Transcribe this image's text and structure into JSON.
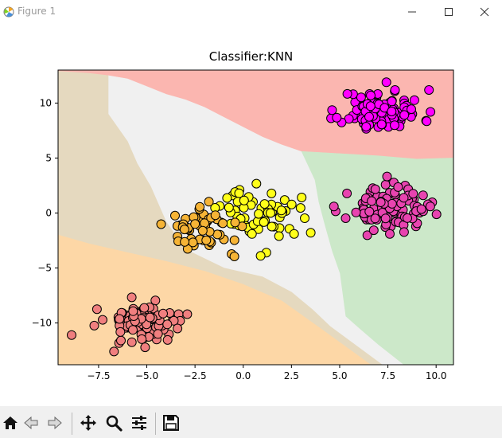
{
  "window": {
    "title": "Figure 1",
    "controls": [
      "minimize",
      "maximize",
      "close"
    ]
  },
  "toolbar": {
    "buttons": [
      {
        "name": "home-button",
        "icon": "home-icon"
      },
      {
        "name": "back-button",
        "icon": "arrow-left-icon"
      },
      {
        "name": "forward-button",
        "icon": "arrow-right-icon"
      },
      {
        "name": "pan-button",
        "icon": "move-icon"
      },
      {
        "name": "zoom-button",
        "icon": "magnifier-icon"
      },
      {
        "name": "configure-subplots-button",
        "icon": "sliders-icon"
      },
      {
        "name": "save-button",
        "icon": "floppy-disk-icon"
      }
    ]
  },
  "chart_data": {
    "type": "scatter",
    "title": "Classifier:KNN",
    "xlabel": "",
    "ylabel": "",
    "xlim": [
      -9.6,
      10.9
    ],
    "ylim": [
      -13.8,
      13.0
    ],
    "xticks": [
      -7.5,
      -5.0,
      -2.5,
      0.0,
      2.5,
      5.0,
      7.5,
      10.0
    ],
    "xtick_labels": [
      "−7.5",
      "−5.0",
      "−2.5",
      "0.0",
      "2.5",
      "5.0",
      "7.5",
      "10.0"
    ],
    "yticks": [
      -10,
      -5,
      0,
      5,
      10
    ],
    "ytick_labels": [
      "−10",
      "−5",
      "0",
      "5",
      "10"
    ],
    "grid": false,
    "decision_regions": [
      {
        "class": "magenta",
        "color": "#fbb6b0",
        "polygon": [
          [
            -9.6,
            13.0
          ],
          [
            10.9,
            13.0
          ],
          [
            10.9,
            5.0
          ],
          [
            9.0,
            4.9
          ],
          [
            7.0,
            5.2
          ],
          [
            6.0,
            5.3
          ],
          [
            4.0,
            5.5
          ],
          [
            3.0,
            5.6
          ],
          [
            2.0,
            6.2
          ],
          [
            1.0,
            6.9
          ],
          [
            0.0,
            7.8
          ],
          [
            -1.0,
            8.7
          ],
          [
            -2.0,
            9.6
          ],
          [
            -3.0,
            10.3
          ],
          [
            -4.0,
            10.8
          ],
          [
            -5.0,
            11.5
          ],
          [
            -6.0,
            12.2
          ],
          [
            -7.0,
            12.5
          ],
          [
            -8.0,
            12.7
          ],
          [
            -9.6,
            12.9
          ]
        ]
      },
      {
        "class": "pink",
        "color": "#cce8c9",
        "polygon": [
          [
            10.9,
            5.0
          ],
          [
            10.9,
            -13.8
          ],
          [
            8.3,
            -13.8
          ],
          [
            7.0,
            -12.0
          ],
          [
            6.0,
            -10.5
          ],
          [
            5.3,
            -9.4
          ],
          [
            5.0,
            -5.5
          ],
          [
            4.6,
            -3.5
          ],
          [
            4.2,
            -1.0
          ],
          [
            3.9,
            1.0
          ],
          [
            3.7,
            3.0
          ],
          [
            3.0,
            5.6
          ],
          [
            4.0,
            5.5
          ],
          [
            6.0,
            5.3
          ],
          [
            7.0,
            5.2
          ],
          [
            9.0,
            4.9
          ]
        ]
      },
      {
        "class": "yellow",
        "color": "#f0f0f0",
        "polygon": [
          [
            -7.0,
            12.5
          ],
          [
            -6.0,
            12.2
          ],
          [
            -5.0,
            11.5
          ],
          [
            -4.0,
            10.8
          ],
          [
            -3.0,
            10.3
          ],
          [
            -2.0,
            9.6
          ],
          [
            -1.0,
            8.7
          ],
          [
            0.0,
            7.8
          ],
          [
            1.0,
            6.9
          ],
          [
            2.0,
            6.2
          ],
          [
            3.0,
            5.6
          ],
          [
            3.7,
            3.0
          ],
          [
            3.9,
            1.0
          ],
          [
            4.2,
            -1.0
          ],
          [
            4.6,
            -3.5
          ],
          [
            5.0,
            -5.5
          ],
          [
            5.3,
            -9.4
          ],
          [
            6.0,
            -10.5
          ],
          [
            7.0,
            -12.0
          ],
          [
            8.3,
            -13.8
          ],
          [
            7.2,
            -13.8
          ],
          [
            4.5,
            -10.3
          ],
          [
            3.6,
            -8.8
          ],
          [
            2.5,
            -7.2
          ],
          [
            1.0,
            -5.8
          ],
          [
            -1.0,
            -5.0
          ],
          [
            -3.0,
            -3.3
          ],
          [
            -4.0,
            -0.8
          ],
          [
            -4.8,
            2.4
          ],
          [
            -5.5,
            4.5
          ],
          [
            -6.0,
            6.5
          ],
          [
            -7.0,
            9.0
          ]
        ]
      },
      {
        "class": "orange",
        "color": "#e5d9bf",
        "polygon": [
          [
            -9.6,
            12.9
          ],
          [
            -8.0,
            12.7
          ],
          [
            -7.0,
            12.5
          ],
          [
            -7.0,
            9.0
          ],
          [
            -6.0,
            6.5
          ],
          [
            -5.5,
            4.5
          ],
          [
            -4.8,
            2.4
          ],
          [
            -4.0,
            -0.8
          ],
          [
            -3.0,
            -3.3
          ],
          [
            -1.0,
            -5.0
          ],
          [
            1.0,
            -5.8
          ],
          [
            2.5,
            -7.2
          ],
          [
            3.6,
            -8.8
          ],
          [
            4.5,
            -10.3
          ],
          [
            7.2,
            -13.8
          ],
          [
            6.6,
            -13.8
          ],
          [
            4.0,
            -10.5
          ],
          [
            2.0,
            -8.0
          ],
          [
            0.0,
            -6.5
          ],
          [
            -2.0,
            -5.3
          ],
          [
            -4.0,
            -4.4
          ],
          [
            -6.0,
            -3.6
          ],
          [
            -8.0,
            -2.8
          ],
          [
            -9.6,
            -2.0
          ]
        ]
      },
      {
        "class": "salmon",
        "color": "#fdd7a6",
        "polygon": [
          [
            -9.6,
            -2.0
          ],
          [
            -8.0,
            -2.8
          ],
          [
            -6.0,
            -3.6
          ],
          [
            -4.0,
            -4.4
          ],
          [
            -2.0,
            -5.3
          ],
          [
            0.0,
            -6.5
          ],
          [
            2.0,
            -8.0
          ],
          [
            4.0,
            -10.5
          ],
          [
            6.6,
            -13.8
          ],
          [
            -9.6,
            -13.8
          ]
        ]
      }
    ],
    "series": [
      {
        "name": "magenta",
        "color": "#ff00ff",
        "center": [
          7.2,
          9.3
        ],
        "spread": [
          1.05,
          0.95
        ],
        "count": 100,
        "seed": 11
      },
      {
        "name": "pink",
        "color": "#e844b0",
        "center": [
          7.5,
          0.4
        ],
        "spread": [
          1.0,
          0.95
        ],
        "count": 100,
        "seed": 23,
        "points": [
          [
            4.7,
            0.6
          ],
          [
            7.6,
            -1.9
          ],
          [
            9.7,
            0.6
          ]
        ]
      },
      {
        "name": "yellow",
        "color": "#ffff1a",
        "center": [
          0.9,
          0.0
        ],
        "spread": [
          1.0,
          1.1
        ],
        "count": 60,
        "seed": 37,
        "points": [
          [
            3.5,
            -1.8
          ],
          [
            1.2,
            -3.6
          ],
          [
            0.9,
            -3.9
          ]
        ]
      },
      {
        "name": "orange",
        "color": "#f6b436",
        "center": [
          -1.8,
          -1.4
        ],
        "spread": [
          1.05,
          1.0
        ],
        "count": 55,
        "seed": 41
      },
      {
        "name": "salmon",
        "color": "#f07f7f",
        "center": [
          -5.2,
          -9.8
        ],
        "spread": [
          0.95,
          0.85
        ],
        "count": 100,
        "seed": 53,
        "points": [
          [
            -8.9,
            -11.1
          ],
          [
            -6.7,
            -12.6
          ],
          [
            -2.9,
            -9.2
          ]
        ]
      }
    ]
  }
}
